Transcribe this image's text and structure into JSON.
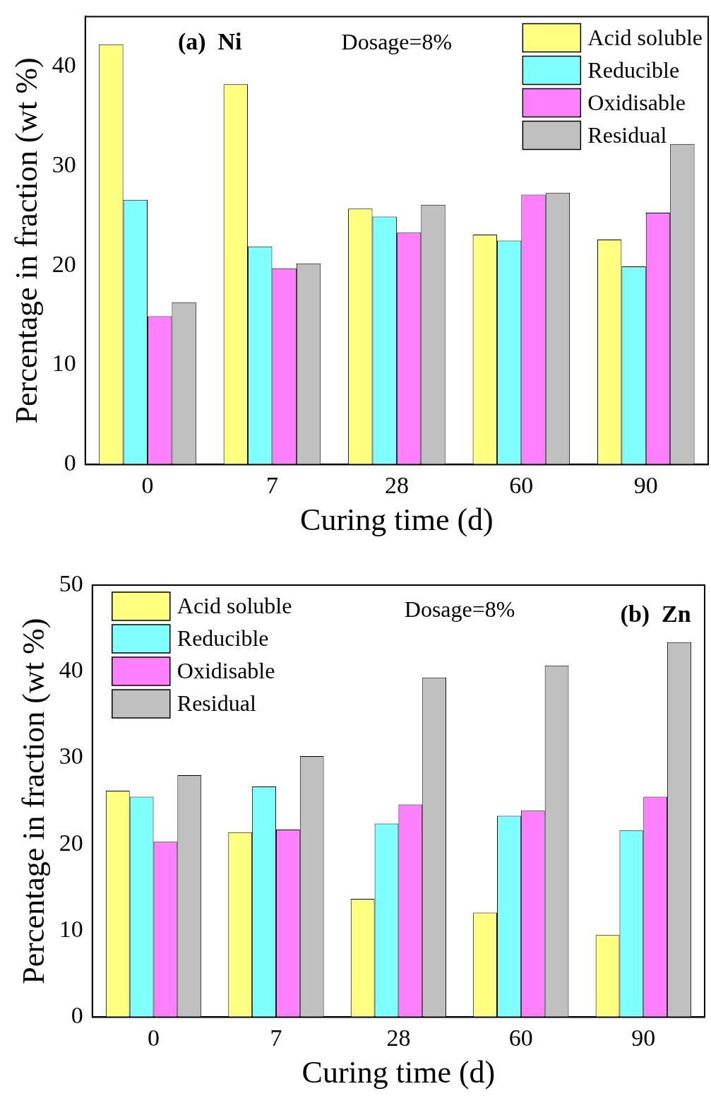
{
  "chart_data": [
    {
      "type": "bar",
      "xlabel": "Curing time (d)",
      "ylabel": "Percentage in fraction (wt %)",
      "annotations": [
        "(a)  Ni",
        "Dosage=8%"
      ],
      "categories": [
        "0",
        "7",
        "28",
        "60",
        "90"
      ],
      "ylim": [
        0,
        45
      ],
      "yticks": [
        0,
        10,
        20,
        30,
        40
      ],
      "grid": false,
      "legend": "top right",
      "series": [
        {
          "name": "Acid soluble",
          "color": "#ffff80",
          "values": [
            42.2,
            38.2,
            25.7,
            23.1,
            22.6
          ]
        },
        {
          "name": "Reducible",
          "color": "#80ffff",
          "values": [
            26.6,
            21.9,
            24.9,
            22.5,
            19.9
          ]
        },
        {
          "name": "Oxidisable",
          "color": "#ff80ff",
          "values": [
            14.9,
            19.7,
            23.3,
            27.1,
            25.3
          ]
        },
        {
          "name": "Residual",
          "color": "#c0c0c0",
          "values": [
            16.3,
            20.2,
            26.1,
            27.3,
            32.2
          ]
        }
      ]
    },
    {
      "type": "bar",
      "xlabel": "Curing time (d)",
      "ylabel": "Percentage in fraction (wt %)",
      "annotations": [
        "Dosage=8%",
        "(b)  Zn"
      ],
      "categories": [
        "0",
        "7",
        "28",
        "60",
        "90"
      ],
      "ylim": [
        0,
        50
      ],
      "yticks": [
        0,
        10,
        20,
        30,
        40,
        50
      ],
      "grid": false,
      "legend": "top left",
      "series": [
        {
          "name": "Acid soluble",
          "color": "#ffff80",
          "values": [
            26.2,
            21.4,
            13.7,
            12.1,
            9.5
          ]
        },
        {
          "name": "Reducible",
          "color": "#80ffff",
          "values": [
            25.5,
            26.7,
            22.4,
            23.3,
            21.6
          ]
        },
        {
          "name": "Oxidisable",
          "color": "#ff80ff",
          "values": [
            20.3,
            21.7,
            24.6,
            23.9,
            25.5
          ]
        },
        {
          "name": "Residual",
          "color": "#c0c0c0",
          "values": [
            28.0,
            30.2,
            39.3,
            40.7,
            43.4
          ]
        }
      ]
    }
  ]
}
